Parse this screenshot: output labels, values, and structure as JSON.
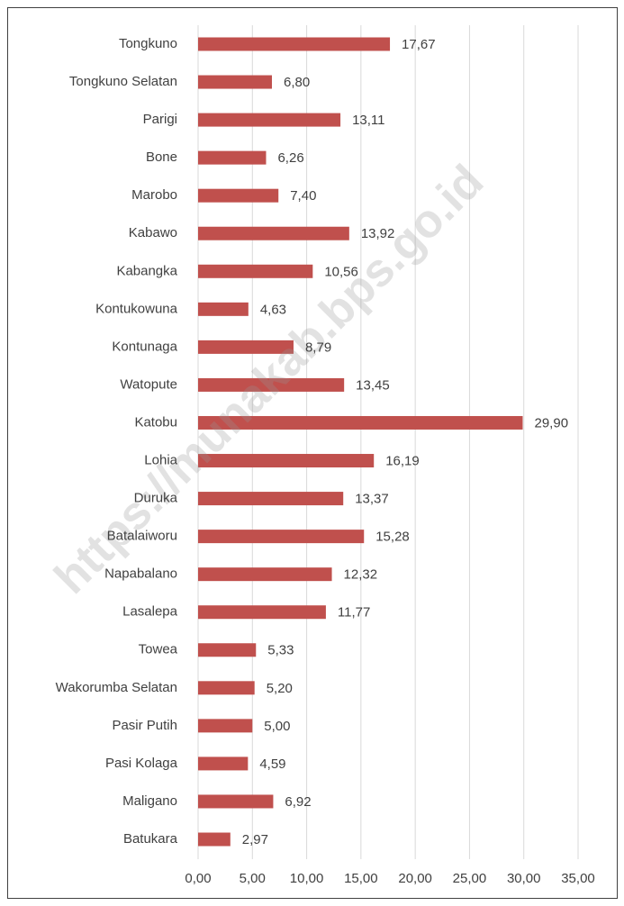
{
  "chart_data": {
    "type": "bar",
    "orientation": "horizontal",
    "categories": [
      "Tongkuno",
      "Tongkuno Selatan",
      "Parigi",
      "Bone",
      "Marobo",
      "Kabawo",
      "Kabangka",
      "Kontukowuna",
      "Kontunaga",
      "Watopute",
      "Katobu",
      "Lohia",
      "Duruka",
      "Batalaiworu",
      "Napabalano",
      "Lasalepa",
      "Towea",
      "Wakorumba Selatan",
      "Pasir Putih",
      "Pasi Kolaga",
      "Maligano",
      "Batukara"
    ],
    "values": [
      17.67,
      6.8,
      13.11,
      6.26,
      7.4,
      13.92,
      10.56,
      4.63,
      8.79,
      13.45,
      29.9,
      16.19,
      13.37,
      15.28,
      12.32,
      11.77,
      5.33,
      5.2,
      5.0,
      4.59,
      6.92,
      2.97
    ],
    "value_labels": [
      "17,67",
      "6,80",
      "13,11",
      "6,26",
      "7,40",
      "13,92",
      "10,56",
      "4,63",
      "8,79",
      "13,45",
      "29,90",
      "16,19",
      "13,37",
      "15,28",
      "12,32",
      "11,77",
      "5,33",
      "5,20",
      "5,00",
      "4,59",
      "6,92",
      "2,97"
    ],
    "color": "#c0504d",
    "xlim": [
      0,
      35
    ],
    "xticks": [
      {
        "value": 0,
        "label": "0,00"
      },
      {
        "value": 5,
        "label": "5,00"
      },
      {
        "value": 10,
        "label": "10,00"
      },
      {
        "value": 15,
        "label": "15,00"
      },
      {
        "value": 20,
        "label": "20,00"
      },
      {
        "value": 25,
        "label": "25,00"
      },
      {
        "value": 30,
        "label": "30,00"
      },
      {
        "value": 35,
        "label": "35,00"
      }
    ],
    "grid": true,
    "watermark": "https://munakab.bps.go.id"
  }
}
